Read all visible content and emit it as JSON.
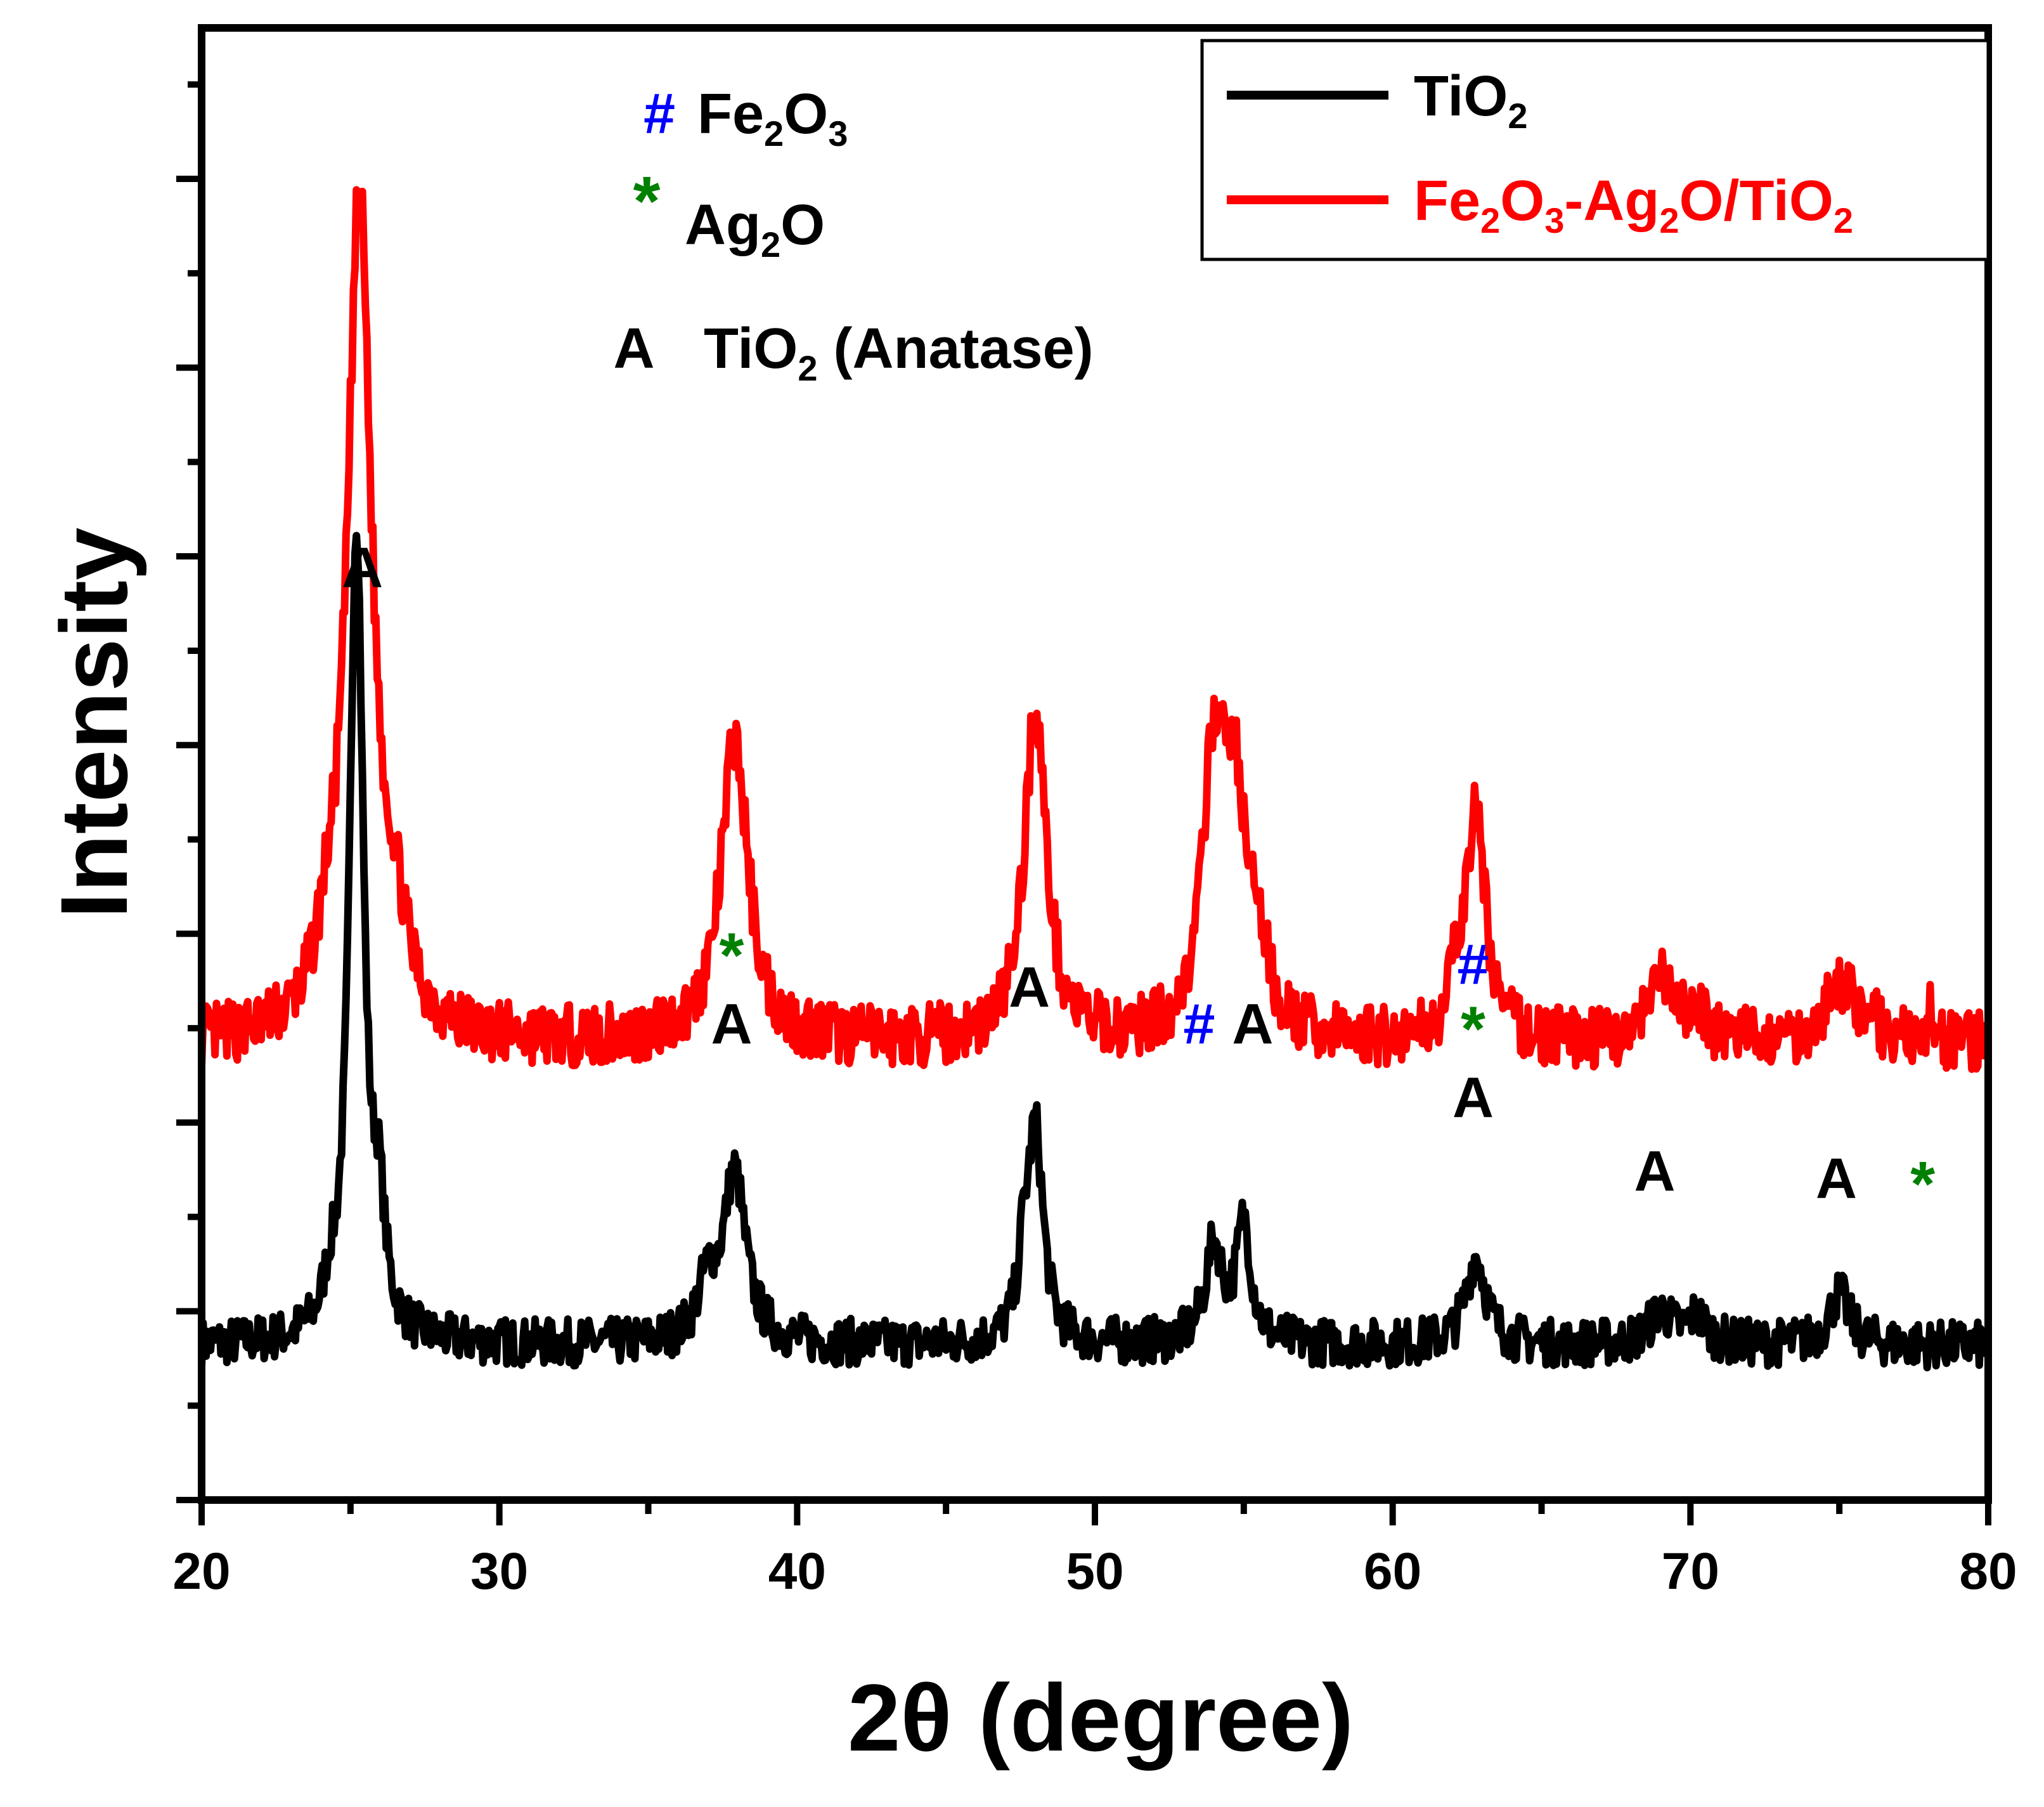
{
  "chart_data": {
    "type": "line",
    "title": "",
    "xlabel": "2θ (degree)",
    "ylabel": "Intensity",
    "xlim": [
      20,
      80
    ],
    "ylim": [
      0,
      100
    ],
    "x_ticks": [
      "20",
      "30",
      "40",
      "50",
      "60",
      "70",
      "80"
    ],
    "y_tick_labels": false,
    "series": [
      {
        "name": "TiO2",
        "label_parts": [
          [
            "TiO",
            ""
          ],
          [
            "2",
            "sub"
          ]
        ],
        "color": "#000000",
        "baseline": 10.5,
        "noise": 1.0,
        "seed": 7,
        "peaks": [
          {
            "x": 25.2,
            "height": 55.5,
            "width": 0.28
          },
          {
            "x": 24.3,
            "height": 2.0,
            "width": 0.25
          },
          {
            "x": 25.95,
            "height": 7.0,
            "width": 0.25
          },
          {
            "x": 37.9,
            "height": 11.5,
            "width": 0.45
          },
          {
            "x": 37.0,
            "height": 3.5,
            "width": 0.4
          },
          {
            "x": 48.0,
            "height": 14.5,
            "width": 0.32
          },
          {
            "x": 47.6,
            "height": 4.0,
            "width": 0.2
          },
          {
            "x": 54.0,
            "height": 6.5,
            "width": 0.35
          },
          {
            "x": 55.0,
            "height": 8.0,
            "width": 0.3
          },
          {
            "x": 62.8,
            "height": 6.0,
            "width": 0.4
          },
          {
            "x": 69.0,
            "height": 2.2,
            "width": 0.45
          },
          {
            "x": 70.2,
            "height": 1.8,
            "width": 0.4
          },
          {
            "x": 75.0,
            "height": 3.5,
            "width": 0.4
          }
        ]
      },
      {
        "name": "Fe2O3-Ag2O/TiO2",
        "label_parts": [
          [
            "Fe",
            ""
          ],
          [
            "2",
            "sub"
          ],
          [
            "O",
            ""
          ],
          [
            "3",
            "sub"
          ],
          [
            "-Ag",
            ""
          ],
          [
            "2",
            "sub"
          ],
          [
            "O/TiO",
            ""
          ],
          [
            "2",
            "sub"
          ]
        ],
        "color": "#ff0000",
        "baseline": 31.0,
        "noise": 1.3,
        "seed": 13,
        "peaks": [
          {
            "x": 25.3,
            "height": 57.0,
            "width": 0.5
          },
          {
            "x": 24.2,
            "height": 3.0,
            "width": 0.4
          },
          {
            "x": 26.5,
            "height": 5.0,
            "width": 0.5
          },
          {
            "x": 37.9,
            "height": 20.5,
            "width": 0.55
          },
          {
            "x": 48.0,
            "height": 22.5,
            "width": 0.45
          },
          {
            "x": 54.0,
            "height": 18.0,
            "width": 0.45
          },
          {
            "x": 54.7,
            "height": 14.5,
            "width": 0.45
          },
          {
            "x": 55.5,
            "height": 4.5,
            "width": 0.4
          },
          {
            "x": 62.8,
            "height": 15.0,
            "width": 0.4
          },
          {
            "x": 62.2,
            "height": 3.0,
            "width": 0.3
          },
          {
            "x": 69.0,
            "height": 4.0,
            "width": 0.45
          },
          {
            "x": 70.2,
            "height": 2.0,
            "width": 0.45
          },
          {
            "x": 75.0,
            "height": 4.0,
            "width": 0.6
          },
          {
            "x": 76.0,
            "height": 1.5,
            "width": 0.3
          },
          {
            "x": 78.0,
            "height": 2.5,
            "width": 0.08
          }
        ]
      }
    ],
    "legend": {
      "position": "top-right",
      "entries": [
        "TiO2",
        "Fe2O3-Ag2O/TiO2"
      ]
    },
    "phase_key": [
      {
        "symbol": "#",
        "symbol_color": "#0000ff",
        "label_parts": [
          [
            "Fe",
            ""
          ],
          [
            "2",
            "sub"
          ],
          [
            "O",
            ""
          ],
          [
            "3",
            "sub"
          ]
        ]
      },
      {
        "symbol": "*",
        "symbol_color": "#008000",
        "label_parts": [
          [
            "Ag",
            ""
          ],
          [
            "2",
            "sub"
          ],
          [
            "O",
            ""
          ]
        ]
      },
      {
        "symbol": "A",
        "symbol_color": "#000000",
        "label_parts": [
          [
            "TiO",
            ""
          ],
          [
            "2",
            "sub"
          ],
          [
            " (Anatase)",
            ""
          ]
        ]
      }
    ],
    "annotations": [
      {
        "x": 25.4,
        "y": 62.0,
        "lines": [
          {
            "text": "A",
            "color": "#000000"
          }
        ]
      },
      {
        "x": 37.8,
        "y": 31.0,
        "lines": [
          {
            "text": "A",
            "color": "#000000"
          },
          {
            "text": "*",
            "color": "#008000"
          }
        ]
      },
      {
        "x": 47.8,
        "y": 33.5,
        "lines": [
          {
            "text": "A",
            "color": "#000000"
          }
        ]
      },
      {
        "x": 53.5,
        "y": 31.0,
        "lines": [
          {
            "text": "#",
            "color": "#0000ff"
          }
        ]
      },
      {
        "x": 55.3,
        "y": 31.0,
        "lines": [
          {
            "text": "A",
            "color": "#000000"
          }
        ]
      },
      {
        "x": 62.7,
        "y": 26.0,
        "lines": [
          {
            "text": "A",
            "color": "#000000"
          },
          {
            "text": "*",
            "color": "#008000"
          },
          {
            "text": "#",
            "color": "#0000ff"
          }
        ]
      },
      {
        "x": 68.8,
        "y": 21.0,
        "lines": [
          {
            "text": "A",
            "color": "#000000"
          }
        ]
      },
      {
        "x": 74.9,
        "y": 20.5,
        "lines": [
          {
            "text": "A",
            "color": "#000000"
          }
        ]
      },
      {
        "x": 77.8,
        "y": 20.0,
        "lines": [
          {
            "text": "*",
            "color": "#008000"
          }
        ]
      }
    ]
  }
}
